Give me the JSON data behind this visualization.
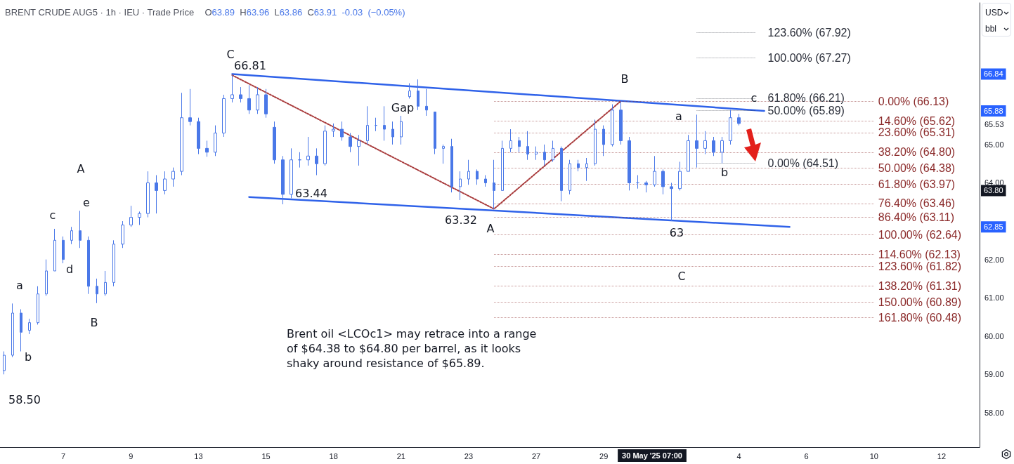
{
  "chart_data": {
    "type": "candlestick",
    "title": "BRENT CRUDE AUG5 · 1h · IEU · Trade Price",
    "subtitle": "O63.89 H63.96 L63.86 C63.91 -0.03 (−0.05%)",
    "categories": [
      null,
      null,
      null,
      null,
      null,
      null,
      null,
      "7",
      null,
      null,
      null,
      null,
      null,
      null,
      null,
      "9",
      null,
      null,
      null,
      null,
      null,
      null,
      null,
      "13",
      null,
      null,
      null,
      null,
      null,
      null,
      null,
      "15",
      null,
      null,
      null,
      null,
      null,
      null,
      null,
      "18",
      null,
      null,
      null,
      null,
      null,
      null,
      null,
      "21",
      null,
      null,
      null,
      null,
      null,
      null,
      null,
      "23",
      null,
      null,
      null,
      null,
      null,
      null,
      null,
      "27",
      null,
      null,
      null,
      null,
      null,
      null,
      null,
      "29",
      null,
      null,
      null,
      null,
      null,
      null,
      null,
      null,
      null,
      null,
      null,
      null,
      null,
      null,
      null,
      "4",
      null,
      null,
      null,
      null,
      null,
      null,
      null,
      "6",
      null,
      null,
      null,
      null,
      null,
      null,
      null,
      "10",
      null,
      null,
      null,
      null,
      null,
      null,
      null,
      "12",
      null,
      null,
      null,
      null
    ],
    "color": "#4a78e8",
    "ohlc": [
      [
        59.1,
        59.6,
        59.0,
        59.5
      ],
      [
        59.5,
        60.85,
        59.45,
        60.6
      ],
      [
        60.6,
        60.7,
        59.6,
        60.1
      ],
      [
        60.15,
        60.45,
        60.05,
        60.35
      ],
      [
        60.35,
        61.3,
        60.3,
        61.1
      ],
      [
        61.1,
        62.0,
        61.05,
        61.7
      ],
      [
        61.7,
        62.8,
        61.7,
        62.5
      ],
      [
        62.5,
        62.6,
        61.9,
        62.0
      ],
      [
        62.5,
        62.85,
        62.4,
        62.75
      ],
      [
        62.75,
        63.27,
        62.3,
        62.5
      ],
      [
        62.5,
        62.6,
        61.1,
        61.3
      ],
      [
        61.3,
        61.5,
        60.86,
        61.1
      ],
      [
        61.1,
        61.7,
        61.05,
        61.4
      ],
      [
        61.4,
        62.5,
        61.3,
        62.4
      ],
      [
        62.4,
        63.0,
        62.3,
        62.9
      ],
      [
        62.9,
        63.4,
        62.85,
        63.1
      ],
      [
        63.1,
        63.25,
        62.9,
        63.2
      ],
      [
        63.2,
        64.3,
        63.1,
        64.0
      ],
      [
        64.0,
        64.2,
        63.2,
        63.8
      ],
      [
        63.8,
        64.3,
        63.7,
        64.1
      ],
      [
        64.1,
        64.4,
        63.9,
        64.3
      ],
      [
        64.3,
        66.35,
        64.2,
        65.7
      ],
      [
        65.7,
        66.45,
        65.5,
        65.6
      ],
      [
        65.6,
        65.7,
        64.75,
        64.9
      ],
      [
        64.9,
        65.1,
        64.68,
        64.8
      ],
      [
        64.8,
        65.5,
        64.7,
        65.3
      ],
      [
        65.3,
        66.3,
        65.2,
        66.2
      ],
      [
        66.2,
        66.81,
        66.1,
        66.3
      ],
      [
        66.3,
        66.5,
        66.1,
        66.2
      ],
      [
        66.2,
        66.55,
        65.8,
        65.9
      ],
      [
        65.9,
        66.5,
        65.8,
        66.3
      ],
      [
        66.3,
        66.45,
        65.7,
        65.8
      ],
      [
        65.45,
        65.6,
        64.5,
        64.6
      ],
      [
        64.6,
        64.7,
        63.44,
        63.7
      ],
      [
        63.7,
        64.9,
        63.6,
        64.6
      ],
      [
        64.6,
        64.8,
        64.4,
        64.6
      ],
      [
        64.6,
        65.2,
        64.45,
        64.7
      ],
      [
        64.7,
        64.9,
        64.2,
        64.5
      ],
      [
        64.5,
        65.5,
        64.45,
        65.35
      ],
      [
        65.35,
        65.55,
        65.2,
        65.4
      ],
      [
        65.4,
        65.6,
        65.1,
        65.2
      ],
      [
        65.2,
        65.3,
        64.8,
        64.95
      ],
      [
        64.95,
        65.25,
        64.45,
        65.1
      ],
      [
        65.1,
        66.0,
        65.0,
        65.5
      ],
      [
        65.5,
        65.7,
        65.35,
        65.5
      ],
      [
        65.5,
        66.0,
        65.1,
        65.4
      ],
      [
        65.4,
        65.6,
        65.0,
        65.2
      ],
      [
        65.2,
        65.75,
        65.0,
        65.6
      ],
      [
        66.25,
        66.6,
        66.2,
        66.4
      ],
      [
        66.4,
        66.7,
        65.9,
        66.0
      ],
      [
        66.0,
        66.45,
        65.75,
        65.9
      ],
      [
        65.85,
        65.85,
        64.75,
        64.9
      ],
      [
        64.9,
        65.0,
        64.5,
        64.95
      ],
      [
        64.95,
        65.15,
        63.75,
        63.9
      ],
      [
        63.9,
        64.3,
        63.55,
        64.1
      ],
      [
        64.1,
        64.6,
        63.95,
        64.3
      ],
      [
        64.3,
        64.35,
        63.95,
        64.1
      ],
      [
        64.1,
        64.2,
        63.9,
        64.0
      ],
      [
        64.0,
        64.6,
        63.32,
        63.8
      ],
      [
        63.8,
        65.1,
        63.8,
        64.9
      ],
      [
        64.9,
        65.4,
        64.8,
        65.1
      ],
      [
        65.1,
        65.2,
        64.8,
        64.95
      ],
      [
        64.95,
        65.35,
        64.6,
        64.75
      ],
      [
        64.75,
        64.95,
        64.6,
        64.8
      ],
      [
        64.8,
        65.0,
        64.45,
        64.6
      ],
      [
        64.6,
        65.1,
        64.55,
        64.9
      ],
      [
        64.9,
        64.95,
        63.52,
        63.8
      ],
      [
        63.8,
        64.6,
        63.7,
        64.5
      ],
      [
        64.5,
        64.6,
        64.3,
        64.4
      ],
      [
        64.4,
        64.65,
        64.05,
        64.5
      ],
      [
        64.5,
        65.65,
        64.45,
        65.4
      ],
      [
        65.4,
        65.5,
        64.7,
        65.0
      ],
      [
        65.0,
        66.05,
        64.95,
        65.9
      ],
      [
        65.9,
        66.13,
        65.0,
        65.1
      ],
      [
        65.1,
        65.2,
        63.8,
        64.0
      ],
      [
        64.0,
        64.2,
        63.85,
        64.0
      ],
      [
        64.0,
        64.05,
        63.75,
        63.95
      ],
      [
        63.95,
        64.7,
        63.9,
        64.3
      ],
      [
        64.3,
        64.35,
        63.7,
        63.9
      ],
      [
        63.9,
        64.0,
        63.0,
        63.85
      ],
      [
        63.85,
        64.55,
        63.8,
        64.3
      ],
      [
        64.3,
        65.25,
        64.3,
        65.1
      ],
      [
        65.1,
        65.78,
        64.4,
        64.9
      ],
      [
        64.9,
        65.35,
        64.75,
        65.1
      ],
      [
        65.1,
        65.2,
        64.7,
        64.8
      ],
      [
        64.8,
        65.2,
        64.51,
        65.1
      ],
      [
        65.1,
        65.9,
        65.0,
        65.7
      ],
      [
        65.7,
        65.8,
        65.5,
        65.55
      ],
      null,
      null,
      null,
      null,
      null,
      null,
      null,
      null,
      null,
      null,
      null,
      null,
      null,
      null,
      null,
      null,
      null,
      null,
      null,
      null,
      null,
      null,
      null,
      null,
      null,
      null,
      null,
      null
    ],
    "series": [
      {
        "type": "line",
        "color": "#2f62e9",
        "line_style": "solid",
        "values": [
          null,
          null,
          null,
          null,
          null,
          null,
          null,
          null,
          null,
          null,
          null,
          null,
          null,
          null,
          null,
          null,
          null,
          null,
          null,
          null,
          null,
          null,
          null,
          null,
          null,
          null,
          null,
          66.84,
          null,
          null,
          null,
          null,
          null,
          null,
          null,
          null,
          null,
          null,
          null,
          null,
          null,
          null,
          null,
          null,
          null,
          null,
          null,
          null,
          null,
          null,
          null,
          null,
          null,
          null,
          null,
          null,
          null,
          null,
          null,
          null,
          null,
          null,
          null,
          null,
          null,
          null,
          null,
          null,
          null,
          null,
          null,
          null,
          null,
          null,
          null,
          null,
          null,
          null,
          null,
          null,
          null,
          null,
          null,
          null,
          null,
          null,
          null,
          null,
          null,
          null,
          65.88,
          null,
          null,
          null,
          null,
          null,
          null,
          null,
          null,
          null,
          null,
          null,
          null,
          null,
          null,
          null,
          null,
          null,
          null,
          null,
          null,
          null,
          null,
          null,
          null,
          null
        ]
      },
      {
        "type": "line",
        "color": "#2f62e9",
        "line_style": "solid",
        "values": [
          null,
          null,
          null,
          null,
          null,
          null,
          null,
          null,
          null,
          null,
          null,
          null,
          null,
          null,
          null,
          null,
          null,
          null,
          null,
          null,
          null,
          null,
          null,
          null,
          null,
          null,
          null,
          null,
          null,
          63.63,
          null,
          null,
          null,
          null,
          null,
          null,
          null,
          null,
          null,
          null,
          null,
          null,
          null,
          null,
          null,
          null,
          null,
          null,
          null,
          null,
          null,
          null,
          null,
          null,
          null,
          null,
          null,
          null,
          null,
          null,
          null,
          null,
          null,
          null,
          null,
          null,
          null,
          null,
          null,
          null,
          null,
          null,
          null,
          null,
          null,
          null,
          null,
          null,
          null,
          null,
          null,
          null,
          null,
          null,
          null,
          null,
          null,
          null,
          null,
          null,
          null,
          null,
          null,
          62.85,
          null,
          null,
          null,
          null,
          null,
          null,
          null,
          null,
          null,
          null,
          null,
          null,
          null,
          null,
          null,
          null,
          null,
          null,
          null,
          null,
          null,
          null
        ]
      },
      {
        "type": "line",
        "color": "#a8393a",
        "line_style": "dotted",
        "values": [
          null,
          null,
          null,
          null,
          null,
          null,
          null,
          null,
          null,
          null,
          null,
          null,
          null,
          null,
          null,
          null,
          null,
          null,
          null,
          null,
          null,
          null,
          null,
          null,
          null,
          null,
          null,
          66.81,
          null,
          null,
          null,
          null,
          null,
          null,
          null,
          null,
          null,
          null,
          null,
          null,
          null,
          null,
          null,
          null,
          null,
          null,
          null,
          null,
          null,
          null,
          null,
          null,
          null,
          null,
          null,
          null,
          null,
          null,
          63.32,
          null,
          null,
          null,
          null,
          null,
          null,
          null,
          null,
          null,
          null,
          null,
          null,
          null,
          null,
          66.13,
          null,
          null,
          null,
          null,
          null,
          null,
          null,
          null,
          null,
          null,
          null,
          null,
          null,
          null,
          null,
          null,
          null,
          null,
          null,
          null,
          null,
          null,
          null,
          null,
          null,
          null,
          null,
          null,
          null,
          null,
          null,
          null,
          null,
          null,
          null,
          null,
          null,
          null,
          null,
          null,
          null,
          null
        ]
      }
    ],
    "marker": "none",
    "ylim": [
      57.1,
      68.7
    ],
    "yticks": [
      {
        "value": 58,
        "label": "58.00"
      },
      {
        "value": 59,
        "label": "59.00"
      },
      {
        "value": 60,
        "label": "60.00"
      },
      {
        "value": 61,
        "label": "61.00"
      },
      {
        "value": 62,
        "label": "62.00"
      },
      {
        "value": 64,
        "label": "64.00"
      },
      {
        "value": 65,
        "label": "65.00"
      },
      {
        "value": 65.53,
        "label": "65.53"
      }
    ],
    "ref_lines": [
      {
        "axis": "y",
        "value": 67.92,
        "label": "123.60% (67.92)",
        "color": "#2a2e39",
        "line_style": "dotted"
      },
      {
        "axis": "y",
        "value": 67.27,
        "label": "100.00% (67.27)",
        "color": "#2a2e39",
        "line_style": "dotted"
      },
      {
        "axis": "y",
        "value": 66.21,
        "label": "61.80% (66.21)",
        "color": "#2a2e39",
        "line_style": "dotted"
      },
      {
        "axis": "y",
        "value": 65.89,
        "label": "50.00% (65.89)",
        "color": "#2a2e39",
        "line_style": "dotted"
      },
      {
        "axis": "y",
        "value": 64.51,
        "label": "0.00% (64.51)",
        "color": "#2a2e39",
        "line_style": "dotted"
      },
      {
        "axis": "y",
        "value": 66.13,
        "label": "0.00% (66.13)",
        "color": "#8b2a2a",
        "line_style": "dotted"
      },
      {
        "axis": "y",
        "value": 65.62,
        "label": "14.60% (65.62)",
        "color": "#8b2a2a",
        "line_style": "dotted"
      },
      {
        "axis": "y",
        "value": 65.31,
        "label": "23.60% (65.31)",
        "color": "#8b2a2a",
        "line_style": "dotted"
      },
      {
        "axis": "y",
        "value": 64.8,
        "label": "38.20% (64.80)",
        "color": "#8b2a2a",
        "line_style": "dotted"
      },
      {
        "axis": "y",
        "value": 64.38,
        "label": "50.00% (64.38)",
        "color": "#8b2a2a",
        "line_style": "dotted"
      },
      {
        "axis": "y",
        "value": 63.97,
        "label": "61.80% (63.97)",
        "color": "#8b2a2a",
        "line_style": "dotted"
      },
      {
        "axis": "y",
        "value": 63.46,
        "label": "76.40% (63.46)",
        "color": "#8b2a2a",
        "line_style": "dotted"
      },
      {
        "axis": "y",
        "value": 63.11,
        "label": "86.40% (63.11)",
        "color": "#8b2a2a",
        "line_style": "dotted"
      },
      {
        "axis": "y",
        "value": 62.64,
        "label": "100.00% (62.64)",
        "color": "#8b2a2a",
        "line_style": "dotted"
      },
      {
        "axis": "y",
        "value": 62.13,
        "label": "114.60% (62.13)",
        "color": "#8b2a2a",
        "line_style": "dotted"
      },
      {
        "axis": "y",
        "value": 61.82,
        "label": "123.60% (61.82)",
        "color": "#8b2a2a",
        "line_style": "dotted"
      },
      {
        "axis": "y",
        "value": 61.31,
        "label": "138.20% (61.31)",
        "color": "#8b2a2a",
        "line_style": "dotted"
      },
      {
        "axis": "y",
        "value": 60.89,
        "label": "150.00% (60.89)",
        "color": "#8b2a2a",
        "line_style": "dotted"
      },
      {
        "axis": "y",
        "value": 60.48,
        "label": "161.80% (60.48)",
        "color": "#8b2a2a",
        "line_style": "dotted"
      }
    ],
    "annotations": [
      "C",
      {
        "text": "66.81",
        "y": 66.81
      },
      "A",
      "e",
      "c",
      "a",
      "d",
      "b",
      "B",
      "58.50",
      {
        "text": "63.44",
        "y": 63.44
      },
      "Gap",
      {
        "text": "63.32",
        "y": 63.32
      },
      "A",
      "B",
      "a",
      "b",
      "c",
      {
        "text": "63",
        "y": 63
      },
      "C",
      "Brent oil <LCOc1> may retrace into a range of $64.38 to $64.80 per barrel, as it looks shaky around resistance of $65.89.",
      {
        "text": "66.84",
        "y": 66.84
      },
      {
        "text": "65.88",
        "y": 65.88
      },
      {
        "text": "62.85",
        "y": 62.85
      },
      {
        "text": "63.80",
        "y": 63.8
      },
      "USD",
      "bbl",
      "30 May '25 07:00"
    ]
  }
}
